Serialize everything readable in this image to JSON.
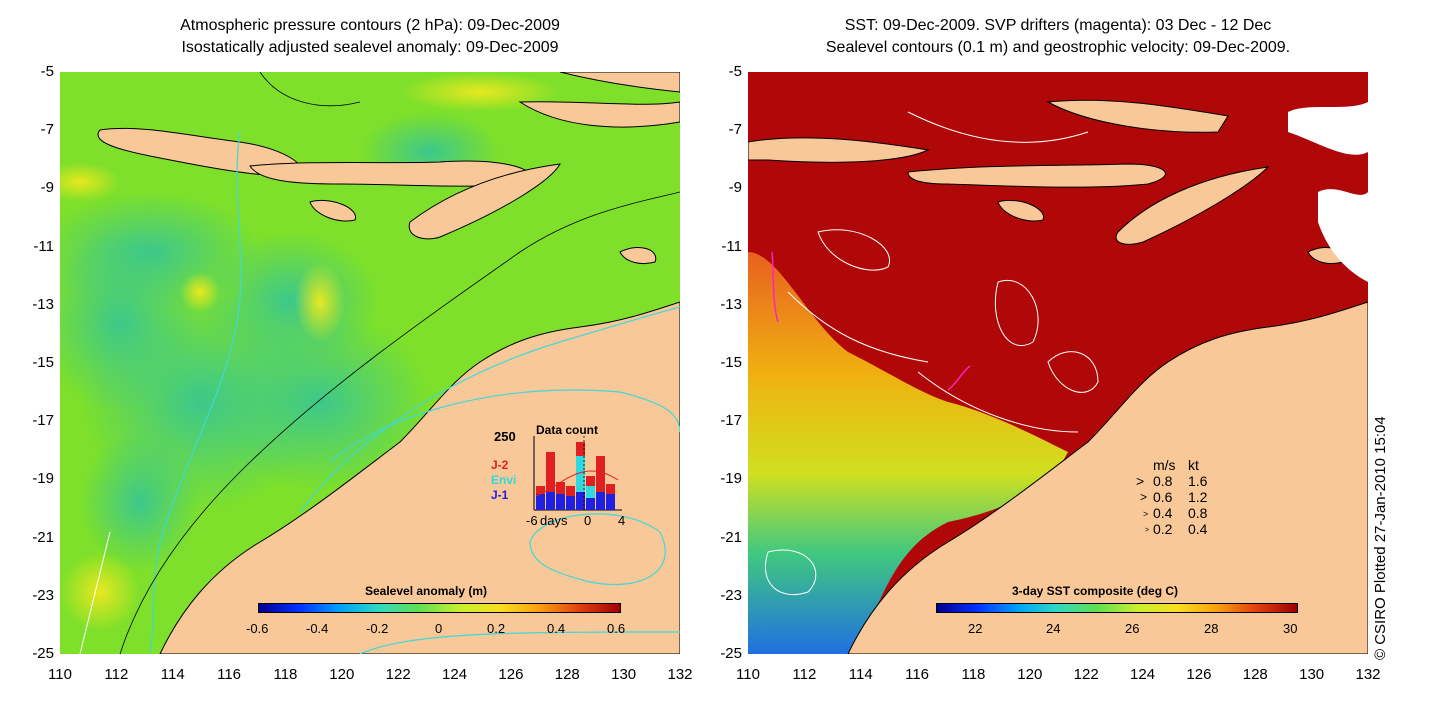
{
  "left_panel": {
    "title_line1": "Atmospheric pressure contours (2 hPa): 09-Dec-2009",
    "title_line2": "Isostatically adjusted sealevel anomaly: 09-Dec-2009",
    "colorbar_label": "Sealevel anomaly (m)",
    "colorbar_ticks": [
      "-0.6",
      "-0.4",
      "-0.2",
      "0",
      "0.2",
      "0.4",
      "0.6"
    ],
    "inset": {
      "title": "Data count",
      "ytick": "250",
      "series_labels": [
        "J-2",
        "Envi",
        "J-1"
      ],
      "xticks": [
        "-6",
        "days",
        "0",
        "4"
      ]
    }
  },
  "right_panel": {
    "title_line1": "SST: 09-Dec-2009. SVP drifters (magenta): 03 Dec - 12 Dec",
    "title_line2": "Sealevel contours (0.1 m) and geostrophic velocity: 09-Dec-2009.",
    "colorbar_label": "3-day SST composite (deg C)",
    "colorbar_ticks": [
      "22",
      "24",
      "26",
      "28",
      "30"
    ],
    "speed_legend": {
      "headers": [
        "m/s",
        "kt"
      ],
      "rows": [
        [
          "0.8",
          "1.6"
        ],
        [
          "0.6",
          "1.2"
        ],
        [
          "0.4",
          "0.8"
        ],
        [
          "0.2",
          "0.4"
        ]
      ]
    }
  },
  "axes": {
    "lat_ticks": [
      "-5",
      "-7",
      "-9",
      "-11",
      "-13",
      "-15",
      "-17",
      "-19",
      "-21",
      "-23",
      "-25"
    ],
    "lon_ticks": [
      "110",
      "112",
      "114",
      "116",
      "118",
      "120",
      "122",
      "124",
      "126",
      "128",
      "130",
      "132"
    ]
  },
  "credit": "© CSIRO Plotted 27-Jan-2010 15:04",
  "colors": {
    "land": "#f8c898",
    "sla_green": "#7ee02a",
    "sla_cyan": "#3cc88c",
    "sst_red": "#b00808",
    "contour_cyan": "#40d8d8"
  }
}
